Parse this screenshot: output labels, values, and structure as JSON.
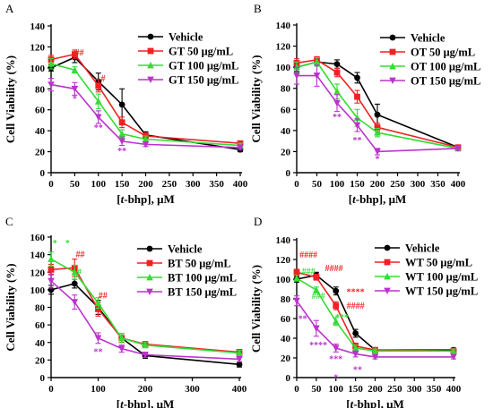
{
  "colors": {
    "Vehicle": "#000000",
    "50": "#ee2222",
    "100": "#33dd33",
    "150": "#bb33cc"
  },
  "chart_data": [
    {
      "type": "line",
      "panel": "A",
      "x": [
        0,
        50,
        100,
        150,
        200,
        400
      ],
      "xticks": [
        "0",
        "50",
        "100",
        "150",
        "200",
        "250",
        "300",
        "350",
        "400"
      ],
      "xlabel_prefix": "[",
      "xlabel_italic": "t",
      "xlabel_suffix": "-bhp], μM",
      "ylabel": "Cell Viability (%)",
      "ylim": [
        0,
        140
      ],
      "yticks": [
        "0",
        "20",
        "40",
        "60",
        "80",
        "100",
        "120",
        "140"
      ],
      "legend_placement": "top-right",
      "series": [
        {
          "name": "Vehicle",
          "key": "Vehicle",
          "values": [
            100,
            110,
            87,
            65,
            36,
            22
          ],
          "err": [
            3,
            5,
            8,
            15,
            3,
            2
          ]
        },
        {
          "name": "GT 50 μg/mL",
          "key": "50",
          "values": [
            108,
            113,
            83,
            48,
            35,
            28
          ],
          "err": [
            4,
            4,
            6,
            5,
            3,
            2
          ]
        },
        {
          "name": "GT 100 μg/mL",
          "key": "100",
          "values": [
            104,
            98,
            68,
            37,
            32,
            26
          ],
          "err": [
            5,
            3,
            7,
            4,
            3,
            2
          ]
        },
        {
          "name": "GT 150 μg/mL",
          "key": "150",
          "values": [
            84,
            80,
            53,
            30,
            27,
            24
          ],
          "err": [
            6,
            6,
            6,
            4,
            2,
            2
          ]
        }
      ],
      "annotations": [
        {
          "text": "##",
          "key": "50",
          "x": 60,
          "y": 112
        },
        {
          "text": "#",
          "key": "50",
          "x": 110,
          "y": 87
        },
        {
          "text": "*",
          "key": "150",
          "x": 50,
          "y": 68
        },
        {
          "text": "**",
          "key": "150",
          "x": 100,
          "y": 40
        },
        {
          "text": "**",
          "key": "150",
          "x": 150,
          "y": 18
        }
      ]
    },
    {
      "type": "line",
      "panel": "B",
      "x": [
        0,
        50,
        100,
        150,
        200,
        400
      ],
      "xticks": [
        "0",
        "50",
        "100",
        "150",
        "200",
        "250",
        "300",
        "350",
        "400"
      ],
      "xlabel_prefix": "[",
      "xlabel_italic": "t",
      "xlabel_suffix": "-bhp], μM",
      "ylabel": "Cell Viability (%)",
      "ylim": [
        0,
        140
      ],
      "yticks": [
        "0",
        "20",
        "40",
        "60",
        "80",
        "100",
        "120",
        "140"
      ],
      "legend_placement": "top-right",
      "series": [
        {
          "name": "Vehicle",
          "key": "Vehicle",
          "values": [
            100,
            105,
            103,
            90,
            55,
            24
          ],
          "err": [
            4,
            3,
            4,
            5,
            10,
            2
          ]
        },
        {
          "name": "OT 50 μg/mL",
          "key": "50",
          "values": [
            104,
            107,
            95,
            72,
            43,
            24
          ],
          "err": [
            4,
            3,
            4,
            6,
            4,
            2
          ]
        },
        {
          "name": "OT 100 μg/mL",
          "key": "100",
          "values": [
            100,
            105,
            77,
            52,
            38,
            23
          ],
          "err": [
            5,
            4,
            7,
            8,
            4,
            2
          ]
        },
        {
          "name": "OT 150 μg/mL",
          "key": "150",
          "values": [
            92,
            92,
            66,
            45,
            20,
            23
          ],
          "err": [
            8,
            10,
            8,
            6,
            3,
            2
          ]
        }
      ],
      "annotations": [
        {
          "text": "**",
          "key": "150",
          "x": 100,
          "y": 50
        },
        {
          "text": "**",
          "key": "150",
          "x": 150,
          "y": 28
        },
        {
          "text": "*",
          "key": "150",
          "x": 200,
          "y": 10
        }
      ]
    },
    {
      "type": "line",
      "panel": "C",
      "x": [
        0,
        50,
        100,
        150,
        200,
        400
      ],
      "xticks": [
        "0",
        "100",
        "200",
        "300",
        "400"
      ],
      "xlabel_prefix": "[",
      "xlabel_italic": "t",
      "xlabel_suffix": "-bhp], μM",
      "ylabel": "Cell Viability (%)",
      "ylim": [
        0,
        160
      ],
      "yticks": [
        "0",
        "20",
        "40",
        "60",
        "80",
        "100",
        "120",
        "140",
        "160"
      ],
      "legend_placement": "top-right",
      "series": [
        {
          "name": "Vehicle",
          "key": "Vehicle",
          "values": [
            100,
            107,
            80,
            45,
            25,
            15
          ],
          "err": [
            5,
            5,
            8,
            5,
            3,
            3
          ]
        },
        {
          "name": "BT 50 μg/mL",
          "key": "50",
          "values": [
            123,
            125,
            78,
            45,
            38,
            29
          ],
          "err": [
            6,
            10,
            8,
            5,
            3,
            3
          ]
        },
        {
          "name": "BT 100 μg/mL",
          "key": "100",
          "values": [
            135,
            120,
            85,
            45,
            37,
            28
          ],
          "err": [
            8,
            8,
            6,
            5,
            3,
            3
          ]
        },
        {
          "name": "BT 150 μg/mL",
          "key": "150",
          "values": [
            110,
            86,
            45,
            33,
            26,
            21
          ],
          "err": [
            8,
            8,
            6,
            4,
            3,
            3
          ]
        }
      ],
      "annotations": [
        {
          "text": "*",
          "key": "100",
          "x": 8,
          "y": 150
        },
        {
          "text": "*",
          "key": "100",
          "x": 35,
          "y": 150
        },
        {
          "text": "##",
          "key": "50",
          "x": 62,
          "y": 137
        },
        {
          "text": "#",
          "key": "100",
          "x": 60,
          "y": 117
        },
        {
          "text": "##",
          "key": "50",
          "x": 110,
          "y": 90
        },
        {
          "text": "**",
          "key": "150",
          "x": 100,
          "y": 26
        }
      ]
    },
    {
      "type": "line",
      "panel": "D",
      "x": [
        0,
        50,
        100,
        150,
        200,
        400
      ],
      "xticks": [
        "0",
        "50",
        "100",
        "150",
        "200",
        "250",
        "300",
        "350",
        "400"
      ],
      "xlabel_prefix": "[",
      "xlabel_italic": "t",
      "xlabel_suffix": "-bhp], μM",
      "ylabel": "Cell Viability (%)",
      "ylim": [
        0,
        140
      ],
      "yticks": [
        "0",
        "20",
        "40",
        "60",
        "80",
        "100",
        "120",
        "140"
      ],
      "legend_placement": "top-right",
      "series": [
        {
          "name": "Vehicle",
          "key": "Vehicle",
          "values": [
            100,
            104,
            88,
            45,
            28,
            28
          ],
          "err": [
            3,
            3,
            4,
            4,
            2,
            2
          ]
        },
        {
          "name": "WT 50 μg/mL",
          "key": "50",
          "values": [
            107,
            102,
            73,
            32,
            28,
            27
          ],
          "err": [
            3,
            3,
            4,
            3,
            2,
            2
          ]
        },
        {
          "name": "WT 100 μg/mL",
          "key": "100",
          "values": [
            101,
            89,
            57,
            30,
            27,
            27
          ],
          "err": [
            3,
            3,
            4,
            3,
            2,
            2
          ]
        },
        {
          "name": "WT 150 μg/mL",
          "key": "150",
          "values": [
            78,
            50,
            30,
            24,
            21,
            21
          ],
          "err": [
            5,
            8,
            4,
            3,
            2,
            2
          ]
        }
      ],
      "annotations": [
        {
          "text": "####",
          "key": "50",
          "x": 30,
          "y": 122
        },
        {
          "text": "####",
          "key": "50",
          "x": 95,
          "y": 108
        },
        {
          "text": "###",
          "key": "100",
          "x": 30,
          "y": 105
        },
        {
          "text": "****",
          "key": "50",
          "x": 150,
          "y": 84
        },
        {
          "text": "####",
          "key": "50",
          "x": 150,
          "y": 70
        },
        {
          "text": "###",
          "key": "100",
          "x": 55,
          "y": 80
        },
        {
          "text": "***",
          "key": "100",
          "x": 115,
          "y": 58
        },
        {
          "text": "**",
          "key": "150",
          "x": 15,
          "y": 57
        },
        {
          "text": "****",
          "key": "150",
          "x": 55,
          "y": 30
        },
        {
          "text": "***",
          "key": "150",
          "x": 100,
          "y": 16
        },
        {
          "text": "**",
          "key": "150",
          "x": 155,
          "y": 5
        },
        {
          "text": "*",
          "key": "150",
          "x": 100,
          "y": -3
        }
      ]
    }
  ]
}
